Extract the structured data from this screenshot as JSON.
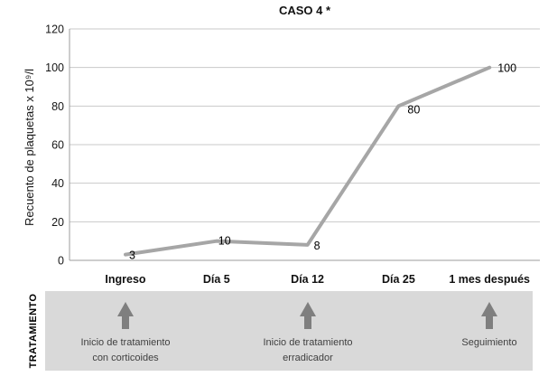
{
  "chart_data": {
    "type": "line",
    "title": "CASO 4 *",
    "ylabel": "Recuento de plaquetas x 10⁹/l",
    "xlabel": "",
    "categories": [
      "Ingreso",
      "Día 5",
      "Día 12",
      "Día 25",
      "1 mes después"
    ],
    "values": [
      3,
      10,
      8,
      80,
      100
    ],
    "data_labels": [
      "3",
      "10",
      "8",
      "80",
      "100"
    ],
    "ylim": [
      0,
      120
    ],
    "yticks": [
      0,
      20,
      40,
      60,
      80,
      100,
      120
    ],
    "grid": "horizontal-only",
    "legend": "none",
    "line_color": "#a6a6a6",
    "grid_color": "#c9c9c9",
    "axis_color": "#9d9d9d"
  },
  "treatment": {
    "label": "TRATAMIENTO",
    "band_color": "#d9d9d9",
    "arrow_color": "#7f7f7f",
    "items": [
      {
        "category": "Ingreso",
        "category_index": 0,
        "lines": [
          "Inicio de tratamiento",
          "con corticoides"
        ]
      },
      {
        "category": "Día 12",
        "category_index": 2,
        "lines": [
          "Inicio de tratamiento",
          "erradicador"
        ]
      },
      {
        "category": "1 mes después",
        "category_index": 4,
        "lines": [
          "Seguimiento",
          ""
        ]
      }
    ]
  }
}
